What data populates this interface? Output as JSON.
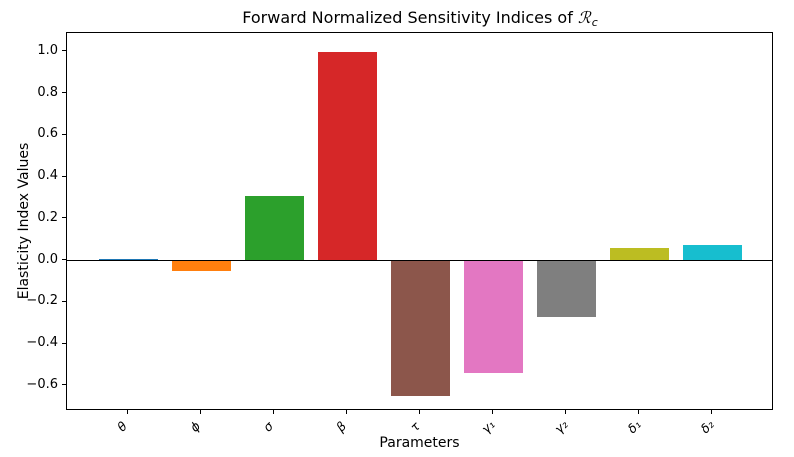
{
  "figure": {
    "title": {
      "prefix": "Forward Normalized Sensitivity Indices of ",
      "symbol": "ℛ",
      "subscript": "c"
    }
  },
  "chart_data": {
    "type": "bar",
    "title": "Forward Normalized Sensitivity Indices of ℛc",
    "categories": [
      "θ",
      "ϕ",
      "σ",
      "β",
      "τ",
      "γ₁",
      "γ₂",
      "δ₁",
      "δ₂"
    ],
    "category_names": [
      "theta",
      "phi",
      "sigma",
      "beta",
      "tau",
      "gamma1",
      "gamma2",
      "delta1",
      "delta2"
    ],
    "values": [
      0.01,
      -0.05,
      0.31,
      1.0,
      -0.65,
      -0.54,
      -0.27,
      0.06,
      0.075
    ],
    "bar_colors": [
      "#1f77b4",
      "#ff7f0e",
      "#2ca02c",
      "#d62728",
      "#8c564b",
      "#e377c2",
      "#7f7f7f",
      "#bcbd22",
      "#17becf"
    ],
    "xlabel": "Parameters",
    "ylabel": "Elasticity Index Values",
    "yticks": [
      1.0,
      0.8,
      0.6,
      0.4,
      0.2,
      0.0,
      -0.2,
      -0.4,
      -0.6
    ],
    "ytick_labels": [
      "1.0",
      "0.8",
      "0.6",
      "0.4",
      "0.2",
      "0.0",
      "−0.2",
      "−0.4",
      "−0.6"
    ],
    "ylim": [
      -0.72,
      1.09
    ],
    "xlim": [
      -0.84,
      8.84
    ],
    "bar_width": 0.8,
    "zero_line": true,
    "grid": false,
    "legend_position": "none",
    "background_color": "#ffffff",
    "spine_color": "#000000",
    "xtick_rotation_deg": 45
  }
}
